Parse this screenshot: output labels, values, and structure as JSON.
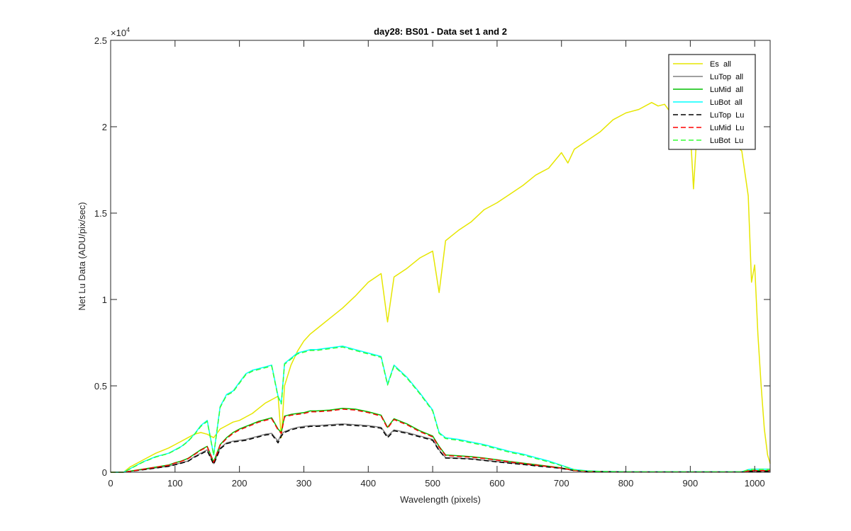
{
  "window": {
    "background": "#ffffff"
  },
  "chart_data": {
    "type": "line",
    "title": "day28: BS01 - Data set 1 and 2",
    "xlabel": "Wavelength (pixels)",
    "ylabel": "Net Lu Data (ADU/pix/sec)",
    "xlim": [
      0,
      1024
    ],
    "ylim": [
      0,
      25000
    ],
    "x_ticks": [
      0,
      100,
      200,
      300,
      400,
      500,
      600,
      700,
      800,
      900,
      1000
    ],
    "y_ticks": [
      0,
      0.5,
      1,
      1.5,
      2,
      2.5
    ],
    "y_multiplier_base": "×10",
    "y_multiplier_exp": "4",
    "grid": false,
    "legend_position": "top-right",
    "series": [
      {
        "name": "Es  all",
        "color": "#e6e600",
        "dash": "solid",
        "x": [
          0,
          20,
          30,
          50,
          70,
          90,
          100,
          110,
          120,
          130,
          140,
          150,
          160,
          170,
          180,
          190,
          200,
          210,
          220,
          230,
          240,
          250,
          260,
          265,
          270,
          280,
          290,
          300,
          310,
          320,
          340,
          360,
          380,
          400,
          420,
          430,
          440,
          460,
          480,
          500,
          510,
          520,
          540,
          560,
          580,
          600,
          620,
          640,
          660,
          680,
          700,
          710,
          720,
          740,
          760,
          780,
          800,
          820,
          840,
          850,
          860,
          870,
          880,
          890,
          900,
          905,
          910,
          920,
          940,
          960,
          980,
          990,
          995,
          1000,
          1005,
          1010,
          1015,
          1020,
          1024
        ],
        "y": [
          0,
          0,
          300,
          700,
          1100,
          1400,
          1600,
          1800,
          2000,
          2200,
          2300,
          2200,
          2000,
          2500,
          2700,
          2900,
          3000,
          3200,
          3400,
          3700,
          4000,
          4200,
          4400,
          2000,
          5000,
          6200,
          7000,
          7600,
          8000,
          8300,
          8900,
          9500,
          10200,
          11000,
          11500,
          8700,
          11300,
          11800,
          12400,
          12800,
          10400,
          13400,
          14000,
          14500,
          15200,
          15600,
          16100,
          16600,
          17200,
          17600,
          18500,
          17900,
          18700,
          19200,
          19700,
          20400,
          20800,
          21000,
          21400,
          21200,
          21300,
          20800,
          20600,
          20000,
          19800,
          16400,
          19500,
          19000,
          18700,
          19200,
          18600,
          16000,
          11000,
          12000,
          8000,
          5000,
          2500,
          1000,
          500
        ]
      },
      {
        "name": "LuTop  all",
        "color": "#808080",
        "dash": "solid",
        "x": [
          0,
          20,
          30,
          50,
          70,
          90,
          100,
          110,
          120,
          130,
          140,
          150,
          160,
          170,
          180,
          190,
          200,
          210,
          220,
          230,
          240,
          250,
          260,
          265,
          270,
          280,
          290,
          300,
          310,
          320,
          340,
          360,
          380,
          400,
          420,
          430,
          440,
          460,
          480,
          500,
          510,
          520,
          540,
          560,
          580,
          600,
          620,
          640,
          660,
          680,
          700,
          710,
          720,
          740,
          760,
          780,
          800,
          820,
          840,
          850,
          860,
          870,
          880,
          890,
          900,
          905,
          910,
          920,
          940,
          960,
          980,
          990,
          995,
          1000,
          1005,
          1010,
          1015,
          1020,
          1024
        ],
        "y": [
          0,
          0,
          50,
          150,
          250,
          350,
          450,
          550,
          650,
          900,
          1100,
          1300,
          500,
          1400,
          1700,
          1800,
          1850,
          1900,
          2000,
          2100,
          2200,
          2250,
          1800,
          2200,
          2350,
          2500,
          2600,
          2650,
          2700,
          2700,
          2750,
          2800,
          2750,
          2700,
          2600,
          2100,
          2450,
          2300,
          2100,
          1900,
          1300,
          850,
          820,
          780,
          700,
          620,
          540,
          470,
          390,
          320,
          230,
          170,
          100,
          60,
          40,
          30,
          20,
          20,
          20,
          20,
          20,
          20,
          20,
          20,
          20,
          20,
          20,
          20,
          20,
          20,
          20,
          50,
          60,
          60,
          60,
          60,
          60,
          60,
          60
        ]
      },
      {
        "name": "LuMid  all",
        "color": "#00bf00",
        "dash": "solid",
        "x": [
          0,
          20,
          30,
          50,
          70,
          90,
          100,
          110,
          120,
          130,
          140,
          150,
          160,
          170,
          180,
          190,
          200,
          210,
          220,
          230,
          240,
          250,
          260,
          265,
          270,
          280,
          290,
          300,
          310,
          320,
          340,
          360,
          380,
          400,
          420,
          430,
          440,
          460,
          480,
          500,
          510,
          520,
          540,
          560,
          580,
          600,
          620,
          640,
          660,
          680,
          700,
          710,
          720,
          740,
          760,
          780,
          800,
          820,
          840,
          850,
          860,
          870,
          880,
          890,
          900,
          905,
          910,
          920,
          940,
          960,
          980,
          990,
          995,
          1000,
          1005,
          1010,
          1015,
          1020,
          1024
        ],
        "y": [
          0,
          0,
          60,
          180,
          300,
          420,
          550,
          650,
          800,
          1050,
          1300,
          1500,
          600,
          1600,
          2000,
          2300,
          2500,
          2650,
          2800,
          2950,
          3050,
          3150,
          2500,
          2300,
          3250,
          3350,
          3400,
          3450,
          3550,
          3550,
          3600,
          3700,
          3650,
          3500,
          3300,
          2600,
          3100,
          2800,
          2400,
          2100,
          1500,
          1000,
          950,
          900,
          820,
          720,
          620,
          530,
          440,
          350,
          250,
          180,
          110,
          60,
          40,
          30,
          20,
          20,
          20,
          20,
          20,
          20,
          20,
          20,
          20,
          20,
          20,
          20,
          20,
          20,
          20,
          80,
          100,
          100,
          100,
          100,
          100,
          100,
          100
        ]
      },
      {
        "name": "LuBot  all",
        "color": "#00ffff",
        "dash": "solid",
        "x": [
          0,
          20,
          30,
          50,
          70,
          90,
          100,
          110,
          120,
          130,
          140,
          150,
          160,
          170,
          180,
          190,
          200,
          210,
          220,
          230,
          240,
          250,
          260,
          265,
          270,
          280,
          290,
          300,
          310,
          320,
          340,
          360,
          380,
          400,
          420,
          430,
          440,
          460,
          480,
          500,
          510,
          520,
          540,
          560,
          580,
          600,
          620,
          640,
          660,
          680,
          700,
          710,
          720,
          740,
          760,
          780,
          800,
          820,
          840,
          850,
          860,
          870,
          880,
          890,
          900,
          905,
          910,
          920,
          940,
          960,
          980,
          990,
          995,
          1000,
          1005,
          1010,
          1015,
          1020,
          1024
        ],
        "y": [
          0,
          0,
          200,
          600,
          900,
          1100,
          1300,
          1500,
          1800,
          2200,
          2700,
          3000,
          1000,
          3800,
          4500,
          4700,
          5200,
          5700,
          5900,
          6000,
          6100,
          6200,
          4400,
          4000,
          6300,
          6600,
          6900,
          7000,
          7100,
          7100,
          7200,
          7300,
          7100,
          6900,
          6700,
          5100,
          6200,
          5500,
          4600,
          3600,
          2300,
          2000,
          1900,
          1750,
          1600,
          1400,
          1200,
          1050,
          850,
          650,
          400,
          280,
          150,
          80,
          50,
          40,
          30,
          30,
          30,
          30,
          30,
          30,
          30,
          30,
          30,
          30,
          30,
          30,
          30,
          30,
          30,
          150,
          180,
          180,
          180,
          180,
          180,
          180,
          180
        ]
      },
      {
        "name": "LuTop  Lu",
        "color": "#000000",
        "dash": "dashed",
        "x": [
          0,
          20,
          30,
          50,
          70,
          90,
          100,
          110,
          120,
          130,
          140,
          150,
          160,
          170,
          180,
          190,
          200,
          210,
          220,
          230,
          240,
          250,
          260,
          265,
          270,
          280,
          290,
          300,
          310,
          320,
          340,
          360,
          380,
          400,
          420,
          430,
          440,
          460,
          480,
          500,
          510,
          520,
          540,
          560,
          580,
          600,
          620,
          640,
          660,
          680,
          700,
          710,
          720,
          740,
          760,
          780,
          800,
          820,
          840,
          850,
          860,
          870,
          880,
          890,
          900,
          905,
          910,
          920,
          940,
          960,
          980,
          990,
          995,
          1000,
          1005,
          1010,
          1015,
          1020,
          1024
        ],
        "y": [
          0,
          0,
          50,
          140,
          240,
          340,
          430,
          530,
          630,
          870,
          1050,
          1250,
          450,
          1350,
          1650,
          1750,
          1800,
          1850,
          1950,
          2050,
          2150,
          2200,
          1700,
          2100,
          2300,
          2450,
          2550,
          2600,
          2650,
          2650,
          2700,
          2750,
          2700,
          2650,
          2550,
          2000,
          2400,
          2250,
          2050,
          1850,
          1250,
          820,
          800,
          760,
          680,
          600,
          520,
          450,
          370,
          300,
          220,
          160,
          90,
          50,
          35,
          25,
          15,
          15,
          15,
          15,
          15,
          15,
          15,
          15,
          15,
          15,
          15,
          15,
          15,
          15,
          15,
          40,
          50,
          50,
          50,
          50,
          50,
          50,
          50
        ]
      },
      {
        "name": "LuMid  Lu",
        "color": "#ff0000",
        "dash": "dashed",
        "x": [
          0,
          20,
          30,
          50,
          70,
          90,
          100,
          110,
          120,
          130,
          140,
          150,
          160,
          170,
          180,
          190,
          200,
          210,
          220,
          230,
          240,
          250,
          260,
          265,
          270,
          280,
          290,
          300,
          310,
          320,
          340,
          360,
          380,
          400,
          420,
          430,
          440,
          460,
          480,
          500,
          510,
          520,
          540,
          560,
          580,
          600,
          620,
          640,
          660,
          680,
          700,
          710,
          720,
          740,
          760,
          780,
          800,
          820,
          840,
          850,
          860,
          870,
          880,
          890,
          900,
          905,
          910,
          920,
          940,
          960,
          980,
          990,
          995,
          1000,
          1005,
          1010,
          1015,
          1020,
          1024
        ],
        "y": [
          0,
          0,
          55,
          170,
          290,
          400,
          530,
          630,
          780,
          1020,
          1270,
          1470,
          580,
          1560,
          1950,
          2250,
          2450,
          2600,
          2750,
          2900,
          3000,
          3100,
          2450,
          2250,
          3200,
          3300,
          3350,
          3400,
          3500,
          3500,
          3550,
          3650,
          3600,
          3450,
          3250,
          2550,
          3050,
          2750,
          2350,
          2050,
          1450,
          970,
          920,
          870,
          800,
          700,
          600,
          510,
          420,
          330,
          240,
          170,
          100,
          55,
          35,
          25,
          15,
          15,
          15,
          15,
          15,
          15,
          15,
          15,
          15,
          15,
          15,
          15,
          15,
          15,
          15,
          70,
          90,
          90,
          90,
          90,
          90,
          90,
          90
        ]
      },
      {
        "name": "LuBot  Lu",
        "color": "#33ff33",
        "dash": "dashed",
        "x": [
          0,
          20,
          30,
          50,
          70,
          90,
          100,
          110,
          120,
          130,
          140,
          150,
          160,
          170,
          180,
          190,
          200,
          210,
          220,
          230,
          240,
          250,
          260,
          265,
          270,
          280,
          290,
          300,
          310,
          320,
          340,
          360,
          380,
          400,
          420,
          430,
          440,
          460,
          480,
          500,
          510,
          520,
          540,
          560,
          580,
          600,
          620,
          640,
          660,
          680,
          700,
          710,
          720,
          740,
          760,
          780,
          800,
          820,
          840,
          850,
          860,
          870,
          880,
          890,
          900,
          905,
          910,
          920,
          940,
          960,
          980,
          990,
          995,
          1000,
          1005,
          1010,
          1015,
          1020,
          1024
        ],
        "y": [
          0,
          0,
          190,
          580,
          880,
          1080,
          1280,
          1480,
          1780,
          2180,
          2650,
          2950,
          980,
          3750,
          4450,
          4650,
          5150,
          5650,
          5850,
          5950,
          6050,
          6150,
          4350,
          3950,
          6250,
          6550,
          6850,
          6950,
          7050,
          7050,
          7150,
          7250,
          7050,
          6850,
          6650,
          5050,
          6150,
          5450,
          4550,
          3550,
          2250,
          1950,
          1850,
          1700,
          1550,
          1350,
          1150,
          1000,
          800,
          600,
          380,
          260,
          140,
          70,
          45,
          35,
          25,
          25,
          25,
          25,
          25,
          25,
          25,
          25,
          25,
          25,
          25,
          25,
          25,
          25,
          25,
          140,
          170,
          170,
          170,
          170,
          170,
          170,
          170
        ]
      }
    ]
  }
}
